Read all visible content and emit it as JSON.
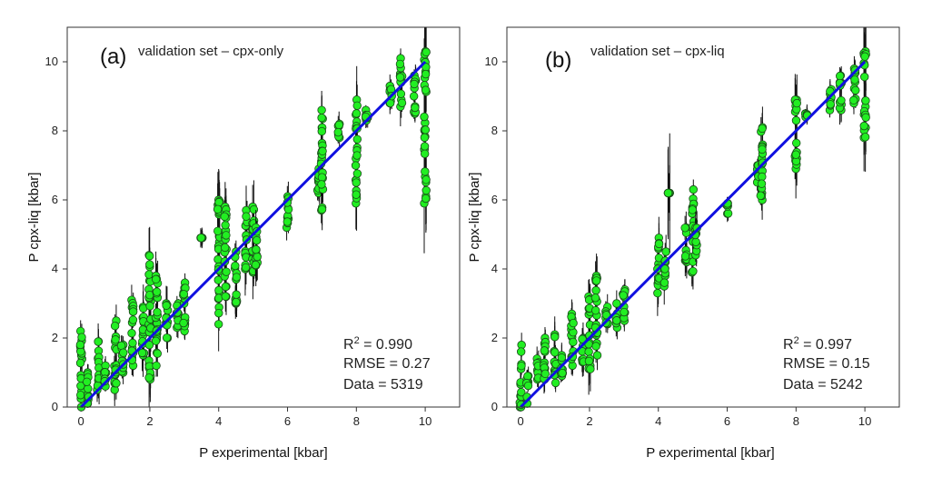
{
  "chart_data": [
    {
      "type": "scatter",
      "panel_label": "(a)",
      "title": "validation set – cpx-only",
      "xlabel": "P experimental [kbar]",
      "ylabel": "P cpx-liq [kbar]",
      "xlim": [
        -0.4,
        11
      ],
      "ylim": [
        0,
        11
      ],
      "xticks": [
        0,
        2,
        4,
        6,
        8,
        10
      ],
      "yticks": [
        0,
        2,
        4,
        6,
        8,
        10
      ],
      "grid": false,
      "fit_line": {
        "x": [
          0,
          10
        ],
        "y": [
          0,
          10
        ],
        "color": "#1010e0"
      },
      "point_color": "#22ee22",
      "stats": {
        "r2_label": "R",
        "r2_sup": "2",
        "r2_value": " = 0.990",
        "rmse": "RMSE = 0.27",
        "data": "Data = 5319"
      },
      "groups": [
        {
          "x": 0.0,
          "ymin": 0.0,
          "ymax": 2.2,
          "err": 0.5
        },
        {
          "x": 0.2,
          "ymin": 0.1,
          "ymax": 1.0,
          "err": 0.4
        },
        {
          "x": 0.5,
          "ymin": 0.5,
          "ymax": 1.9,
          "err": 0.6
        },
        {
          "x": 0.7,
          "ymin": 0.6,
          "ymax": 1.2,
          "err": 0.4
        },
        {
          "x": 1.0,
          "ymin": 0.5,
          "ymax": 2.5,
          "err": 0.6
        },
        {
          "x": 1.2,
          "ymin": 1.0,
          "ymax": 1.8,
          "err": 0.4
        },
        {
          "x": 1.5,
          "ymin": 1.2,
          "ymax": 3.1,
          "err": 0.6
        },
        {
          "x": 1.8,
          "ymin": 1.5,
          "ymax": 2.9,
          "err": 0.7
        },
        {
          "x": 2.0,
          "ymin": 0.8,
          "ymax": 4.4,
          "err": 1.0
        },
        {
          "x": 2.2,
          "ymin": 1.2,
          "ymax": 3.8,
          "err": 0.8
        },
        {
          "x": 2.5,
          "ymin": 2.0,
          "ymax": 3.0,
          "err": 0.6
        },
        {
          "x": 2.8,
          "ymin": 2.3,
          "ymax": 3.0,
          "err": 0.4
        },
        {
          "x": 3.0,
          "ymin": 2.2,
          "ymax": 3.6,
          "err": 0.5
        },
        {
          "x": 3.5,
          "ymin": 4.9,
          "ymax": 4.9,
          "err": 0.3
        },
        {
          "x": 4.0,
          "ymin": 2.4,
          "ymax": 6.0,
          "err": 1.0
        },
        {
          "x": 4.2,
          "ymin": 3.2,
          "ymax": 5.8,
          "err": 0.9
        },
        {
          "x": 4.5,
          "ymin": 3.0,
          "ymax": 4.5,
          "err": 0.6
        },
        {
          "x": 4.8,
          "ymin": 4.0,
          "ymax": 5.7,
          "err": 0.8
        },
        {
          "x": 5.0,
          "ymin": 3.9,
          "ymax": 5.8,
          "err": 0.9
        },
        {
          "x": 5.1,
          "ymin": 4.1,
          "ymax": 5.2,
          "err": 0.6
        },
        {
          "x": 6.0,
          "ymin": 5.2,
          "ymax": 6.1,
          "err": 0.5
        },
        {
          "x": 6.9,
          "ymin": 6.2,
          "ymax": 6.9,
          "err": 0.5
        },
        {
          "x": 7.0,
          "ymin": 5.7,
          "ymax": 8.6,
          "err": 1.0
        },
        {
          "x": 7.5,
          "ymin": 7.8,
          "ymax": 8.2,
          "err": 0.4
        },
        {
          "x": 8.0,
          "ymin": 5.9,
          "ymax": 8.9,
          "err": 1.0
        },
        {
          "x": 8.3,
          "ymin": 8.3,
          "ymax": 8.6,
          "err": 0.3
        },
        {
          "x": 9.0,
          "ymin": 8.8,
          "ymax": 9.3,
          "err": 0.4
        },
        {
          "x": 9.3,
          "ymin": 8.7,
          "ymax": 10.1,
          "err": 0.6
        },
        {
          "x": 9.7,
          "ymin": 8.5,
          "ymax": 9.6,
          "err": 0.5
        },
        {
          "x": 10.0,
          "ymin": 5.9,
          "ymax": 10.3,
          "err": 1.5
        }
      ]
    },
    {
      "type": "scatter",
      "panel_label": "(b)",
      "title": "validation set – cpx-liq",
      "xlabel": "P experimental [kbar]",
      "ylabel": "P cpx-liq [kbar]",
      "xlim": [
        -0.4,
        11
      ],
      "ylim": [
        0,
        11
      ],
      "xticks": [
        0,
        2,
        4,
        6,
        8,
        10
      ],
      "yticks": [
        0,
        2,
        4,
        6,
        8,
        10
      ],
      "grid": false,
      "fit_line": {
        "x": [
          0,
          10
        ],
        "y": [
          0,
          10
        ],
        "color": "#1010e0"
      },
      "point_color": "#22ee22",
      "stats": {
        "r2_label": "R",
        "r2_sup": "2",
        "r2_value": " = 0.997",
        "rmse": "RMSE = 0.15",
        "data": "Data = 5242"
      },
      "groups": [
        {
          "x": 0.0,
          "ymin": 0.0,
          "ymax": 1.8,
          "err": 0.4
        },
        {
          "x": 0.2,
          "ymin": 0.1,
          "ymax": 0.9,
          "err": 0.3
        },
        {
          "x": 0.5,
          "ymin": 0.8,
          "ymax": 1.4,
          "err": 0.4
        },
        {
          "x": 0.7,
          "ymin": 0.8,
          "ymax": 2.0,
          "err": 0.5
        },
        {
          "x": 1.0,
          "ymin": 0.7,
          "ymax": 2.1,
          "err": 0.6
        },
        {
          "x": 1.2,
          "ymin": 0.9,
          "ymax": 1.5,
          "err": 0.4
        },
        {
          "x": 1.5,
          "ymin": 1.2,
          "ymax": 2.7,
          "err": 0.5
        },
        {
          "x": 1.8,
          "ymin": 1.3,
          "ymax": 2.0,
          "err": 0.5
        },
        {
          "x": 2.0,
          "ymin": 1.1,
          "ymax": 3.2,
          "err": 0.8
        },
        {
          "x": 2.2,
          "ymin": 1.5,
          "ymax": 3.8,
          "err": 0.7
        },
        {
          "x": 2.5,
          "ymin": 2.4,
          "ymax": 2.9,
          "err": 0.4
        },
        {
          "x": 2.8,
          "ymin": 2.3,
          "ymax": 3.0,
          "err": 0.4
        },
        {
          "x": 3.0,
          "ymin": 2.5,
          "ymax": 3.4,
          "err": 0.4
        },
        {
          "x": 4.0,
          "ymin": 3.3,
          "ymax": 4.9,
          "err": 0.7
        },
        {
          "x": 4.2,
          "ymin": 3.5,
          "ymax": 4.5,
          "err": 0.6
        },
        {
          "x": 4.3,
          "ymin": 6.2,
          "ymax": 6.2,
          "err": 1.8
        },
        {
          "x": 4.8,
          "ymin": 4.2,
          "ymax": 5.2,
          "err": 0.6
        },
        {
          "x": 5.0,
          "ymin": 3.9,
          "ymax": 6.3,
          "err": 0.8
        },
        {
          "x": 5.1,
          "ymin": 4.4,
          "ymax": 5.2,
          "err": 0.5
        },
        {
          "x": 6.0,
          "ymin": 5.6,
          "ymax": 5.9,
          "err": 0.3
        },
        {
          "x": 6.9,
          "ymin": 6.5,
          "ymax": 7.0,
          "err": 0.4
        },
        {
          "x": 7.0,
          "ymin": 6.0,
          "ymax": 8.1,
          "err": 0.8
        },
        {
          "x": 8.0,
          "ymin": 6.9,
          "ymax": 8.9,
          "err": 0.9
        },
        {
          "x": 8.3,
          "ymin": 8.4,
          "ymax": 8.5,
          "err": 0.3
        },
        {
          "x": 9.0,
          "ymin": 8.6,
          "ymax": 9.2,
          "err": 0.4
        },
        {
          "x": 9.3,
          "ymin": 8.6,
          "ymax": 9.6,
          "err": 0.5
        },
        {
          "x": 9.7,
          "ymin": 8.8,
          "ymax": 9.8,
          "err": 0.4
        },
        {
          "x": 10.0,
          "ymin": 7.8,
          "ymax": 10.3,
          "err": 1.2
        }
      ]
    }
  ]
}
